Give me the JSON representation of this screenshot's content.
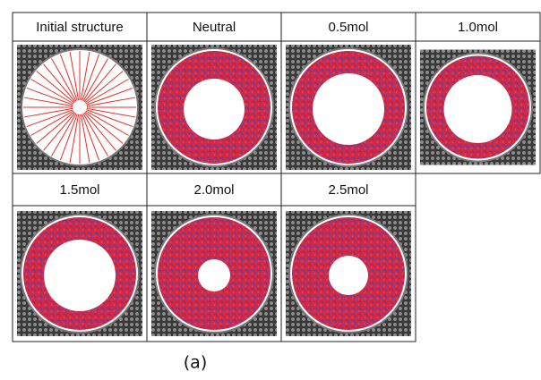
{
  "panels": [
    {
      "label": "Initial structure"
    },
    {
      "label": "Neutral"
    },
    {
      "label": "0.5mol"
    },
    {
      "label": "1.0mol"
    },
    {
      "label": "1.5mol"
    },
    {
      "label": "2.0mol"
    },
    {
      "label": "2.5mol"
    }
  ],
  "caption": "(a)"
}
